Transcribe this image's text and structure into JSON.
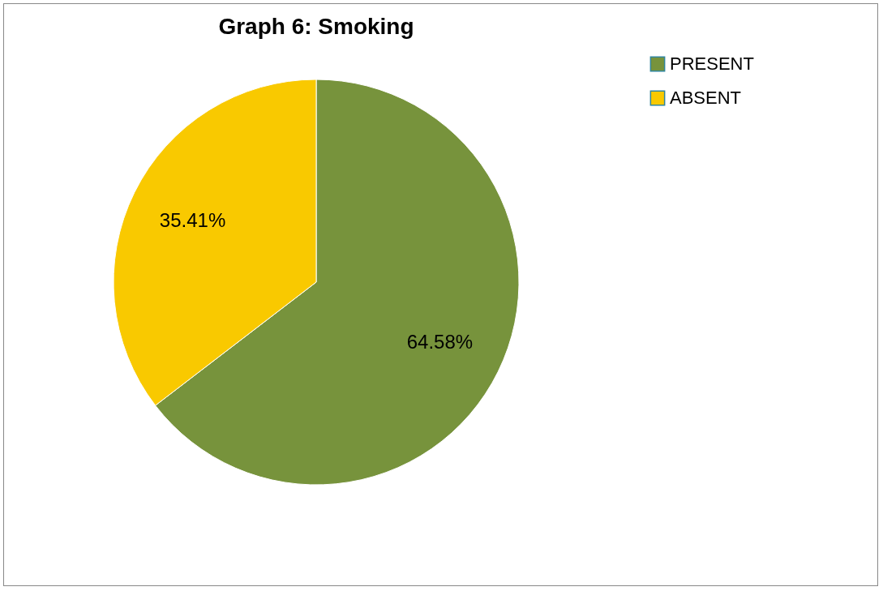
{
  "chart_data": {
    "type": "pie",
    "title": "Graph 6: Smoking",
    "categories": [
      "PRESENT",
      "ABSENT"
    ],
    "values": [
      64.58,
      35.41
    ],
    "value_labels": [
      "64.58%",
      "35.41%"
    ],
    "colors": [
      "#77933c",
      "#f9c900"
    ],
    "legend": "right"
  }
}
